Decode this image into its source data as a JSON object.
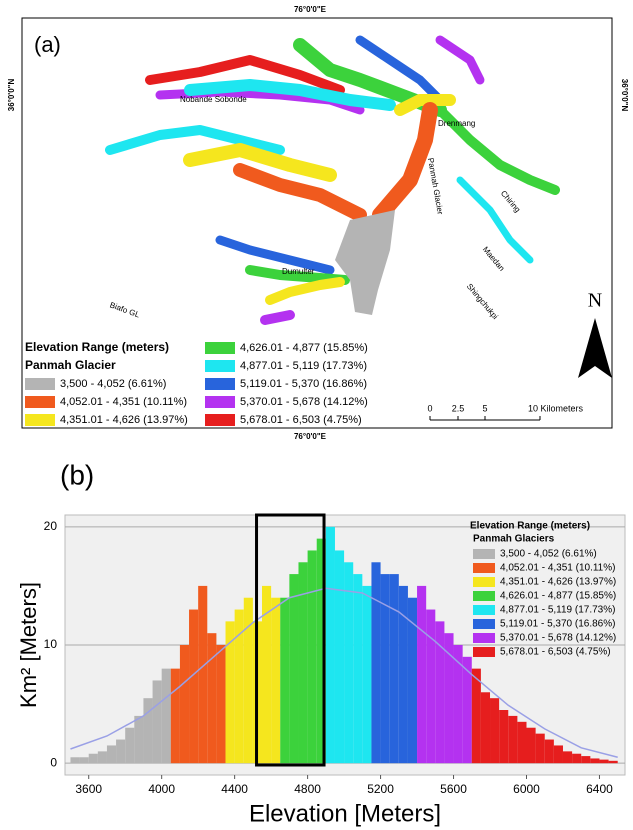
{
  "map": {
    "panel_label": "(a)",
    "top_longitude": "76°0'0\"E",
    "bottom_longitude": "76°0'0\"E",
    "left_latitude": "36°0'0\"N",
    "right_latitude": "36°0'0\"N",
    "places": [
      "Nobande Sobonde",
      "Drenmang",
      "Panmah Glacier",
      "Chiring",
      "Maedan",
      "Dumulter",
      "Shingchukpi",
      "Biafo GL"
    ],
    "legend_title": "Elevation Range (meters)",
    "legend_subtitle": "Panmah Glacier",
    "scale_labels": [
      "0",
      "2.5",
      "5",
      "10 Kilometers"
    ],
    "north": "N"
  },
  "chart_data": {
    "type": "histogram",
    "panel_label": "(b)",
    "x_label": "Elevation [Meters]",
    "y_label": "Km² [Meters]",
    "legend_title": "Elevation Range (meters)",
    "legend_subtitle": "Panmah Glaciers",
    "xlim": [
      3470,
      6540
    ],
    "ylim": [
      -1,
      21
    ],
    "xticks": [
      3600,
      4000,
      4400,
      4800,
      5200,
      5600,
      6000,
      6400
    ],
    "yticks": [
      0,
      10,
      20
    ],
    "grid": true,
    "series": [
      {
        "name": "3,500 - 4,052 (6.61%)",
        "color": "#b4b4b4",
        "bins": [
          3500,
          3550,
          3600,
          3650,
          3700,
          3750,
          3800,
          3850,
          3900,
          3950,
          4000,
          4050
        ],
        "values": [
          0.5,
          0.5,
          0.8,
          1,
          1.5,
          2,
          3,
          4,
          5.5,
          7,
          8
        ]
      },
      {
        "name": "4,052.01 - 4,351 (10.11%)",
        "color": "#f05a1e",
        "bins": [
          4050,
          4100,
          4150,
          4200,
          4250,
          4300,
          4350
        ],
        "values": [
          8,
          10,
          13,
          15,
          11,
          10
        ]
      },
      {
        "name": "4,351.01 - 4,626 (13.97%)",
        "color": "#f5e61e",
        "bins": [
          4350,
          4400,
          4450,
          4500,
          4550,
          4600,
          4650
        ],
        "values": [
          12,
          13,
          14,
          12,
          15,
          14
        ]
      },
      {
        "name": "4,626.01 - 4,877 (15.85%)",
        "color": "#3cd23c",
        "bins": [
          4650,
          4700,
          4750,
          4800,
          4850,
          4900
        ],
        "values": [
          14,
          16,
          17,
          18,
          19
        ]
      },
      {
        "name": "4,877.01 - 5,119 (17.73%)",
        "color": "#1ee6f0",
        "bins": [
          4900,
          4950,
          5000,
          5050,
          5100,
          5150
        ],
        "values": [
          20,
          18,
          17,
          16,
          15
        ]
      },
      {
        "name": "5,119.01 - 5,370 (16.86%)",
        "color": "#2864dc",
        "bins": [
          5150,
          5200,
          5250,
          5300,
          5350,
          5400
        ],
        "values": [
          17,
          16,
          16,
          15,
          14
        ]
      },
      {
        "name": "5,370.01 - 5,678 (14.12%)",
        "color": "#b432f0",
        "bins": [
          5400,
          5450,
          5500,
          5550,
          5600,
          5650,
          5700
        ],
        "values": [
          15,
          13,
          12,
          11,
          10,
          9
        ]
      },
      {
        "name": "5,678.01 - 6,503 (4.75%)",
        "color": "#e61e1e",
        "bins": [
          5700,
          5750,
          5800,
          5850,
          5900,
          5950,
          6000,
          6050,
          6100,
          6150,
          6200,
          6250,
          6300,
          6350,
          6400,
          6450,
          6500
        ],
        "values": [
          8,
          6,
          5.5,
          4.5,
          4,
          3.5,
          3,
          2.5,
          2,
          1.5,
          1,
          0.8,
          0.6,
          0.4,
          0.3,
          0.2
        ]
      }
    ],
    "fit": {
      "color": "#9aa0e6",
      "x": [
        3500,
        3700,
        3900,
        4100,
        4300,
        4500,
        4700,
        4900,
        5100,
        5300,
        5500,
        5700,
        5900,
        6100,
        6300,
        6500
      ],
      "values": [
        1.2,
        2.3,
        4.0,
        6.5,
        9.2,
        11.9,
        14.0,
        14.8,
        14.4,
        12.8,
        10.3,
        7.5,
        4.9,
        2.9,
        1.3,
        0.5
      ]
    },
    "highlight": [
      4520,
      4890
    ]
  }
}
